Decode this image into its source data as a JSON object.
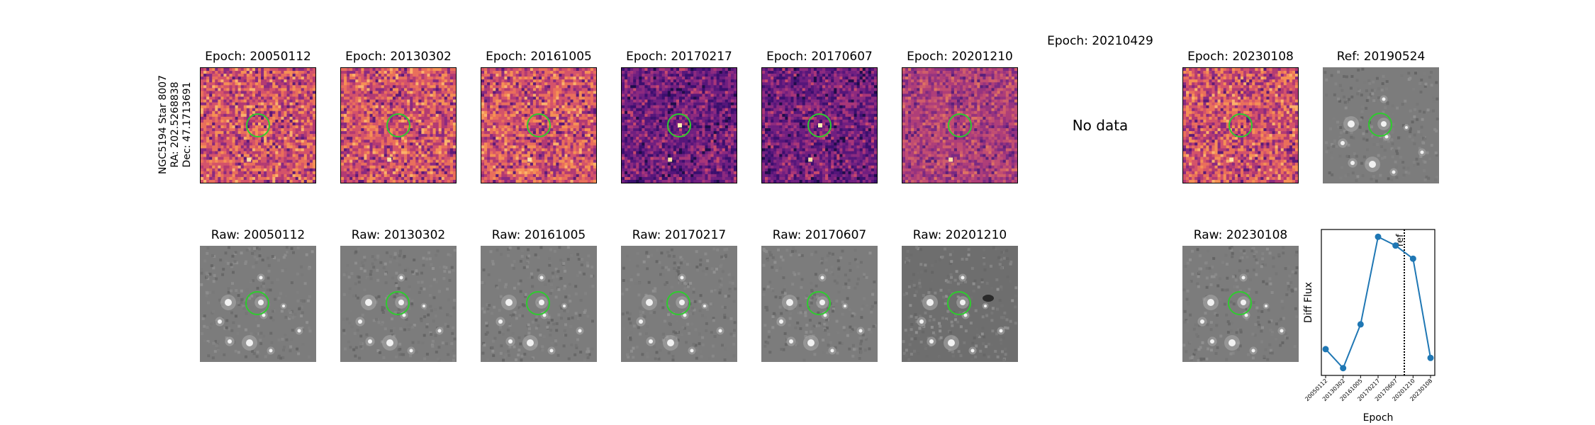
{
  "star": {
    "name": "NGC5194 Star 8007",
    "ra": "RA: 202.5268838",
    "dec": "Dec: 47.1713691"
  },
  "top_row": [
    {
      "title": "Epoch: 20050112",
      "tone": "warm"
    },
    {
      "title": "Epoch: 20130302",
      "tone": "warm"
    },
    {
      "title": "Epoch: 20161005",
      "tone": "warm"
    },
    {
      "title": "Epoch: 20170217",
      "tone": "dark"
    },
    {
      "title": "Epoch: 20170607",
      "tone": "dark"
    },
    {
      "title": "Epoch: 20201210",
      "tone": "mid"
    },
    {
      "title": "Epoch: 20210429",
      "nodata": "No data"
    },
    {
      "title": "Epoch: 20230108",
      "tone": "warm"
    },
    {
      "title": "Ref: 20190524",
      "tone": "gray"
    }
  ],
  "bottom_row": [
    {
      "title": "Raw: 20050112"
    },
    {
      "title": "Raw: 20130302"
    },
    {
      "title": "Raw: 20161005"
    },
    {
      "title": "Raw: 20170217"
    },
    {
      "title": "Raw: 20170607"
    },
    {
      "title": "Raw: 20201210"
    },
    {
      "title": "Raw: 20230108"
    }
  ],
  "colors": {
    "aperture": "#2ecc2e",
    "line": "#1f77b4"
  },
  "chart_data": {
    "type": "line",
    "title": "",
    "xlabel": "Epoch",
    "ylabel": "Diff Flux",
    "x": [
      "20050112",
      "20130302",
      "20161005",
      "20170217",
      "20170607",
      "20201210",
      "20230108"
    ],
    "values": [
      0.23,
      0.1,
      0.4,
      1.0,
      0.94,
      0.85,
      0.17
    ],
    "ylim": [
      0.05,
      1.05
    ],
    "ref_line": {
      "label": "ref",
      "position_between": [
        "20170607",
        "20201210"
      ],
      "style": "dotted"
    },
    "grid": false
  }
}
